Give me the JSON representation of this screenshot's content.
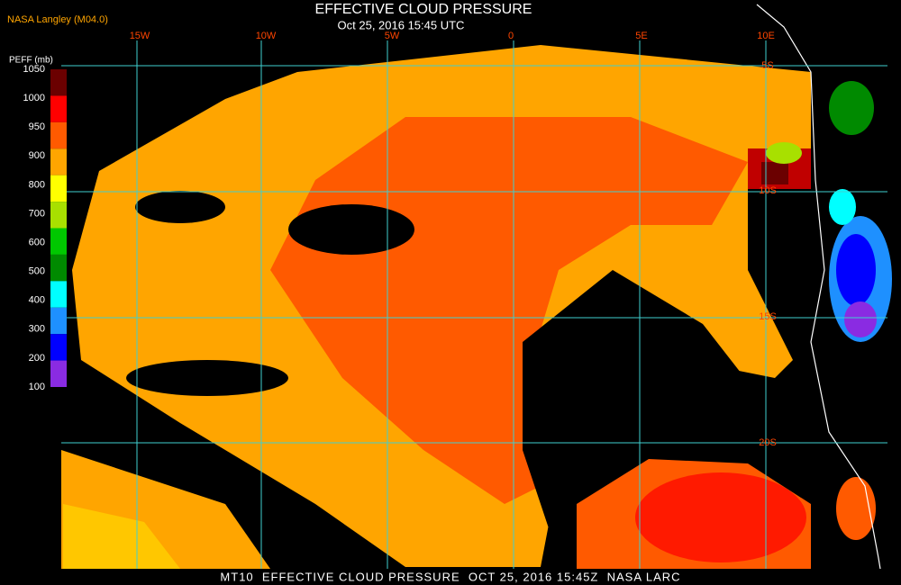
{
  "header": {
    "source": "NASA Langley (M04.0)",
    "title": "EFFECTIVE CLOUD PRESSURE",
    "subtitle": "Oct 25, 2016 15:45 UTC"
  },
  "colorbar": {
    "label": "PEFF (mb)",
    "ticks": [
      1050,
      1000,
      950,
      900,
      800,
      700,
      600,
      500,
      400,
      300,
      200,
      100
    ],
    "colors": [
      "#6b0000",
      "#ff0000",
      "#ff5a00",
      "#ffa500",
      "#ffff00",
      "#a8e000",
      "#00c800",
      "#008a00",
      "#00ffff",
      "#1e90ff",
      "#0000ff",
      "#8a2be2"
    ]
  },
  "longitude_labels": [
    "15W",
    "10W",
    "5W",
    "0",
    "5E",
    "10E"
  ],
  "latitude_labels": [
    "5S",
    "10S",
    "15S",
    "20S"
  ],
  "footer": "MT10  EFFECTIVE CLOUD PRESSURE  OCT 25, 2016 15:45Z  NASA LARC"
}
